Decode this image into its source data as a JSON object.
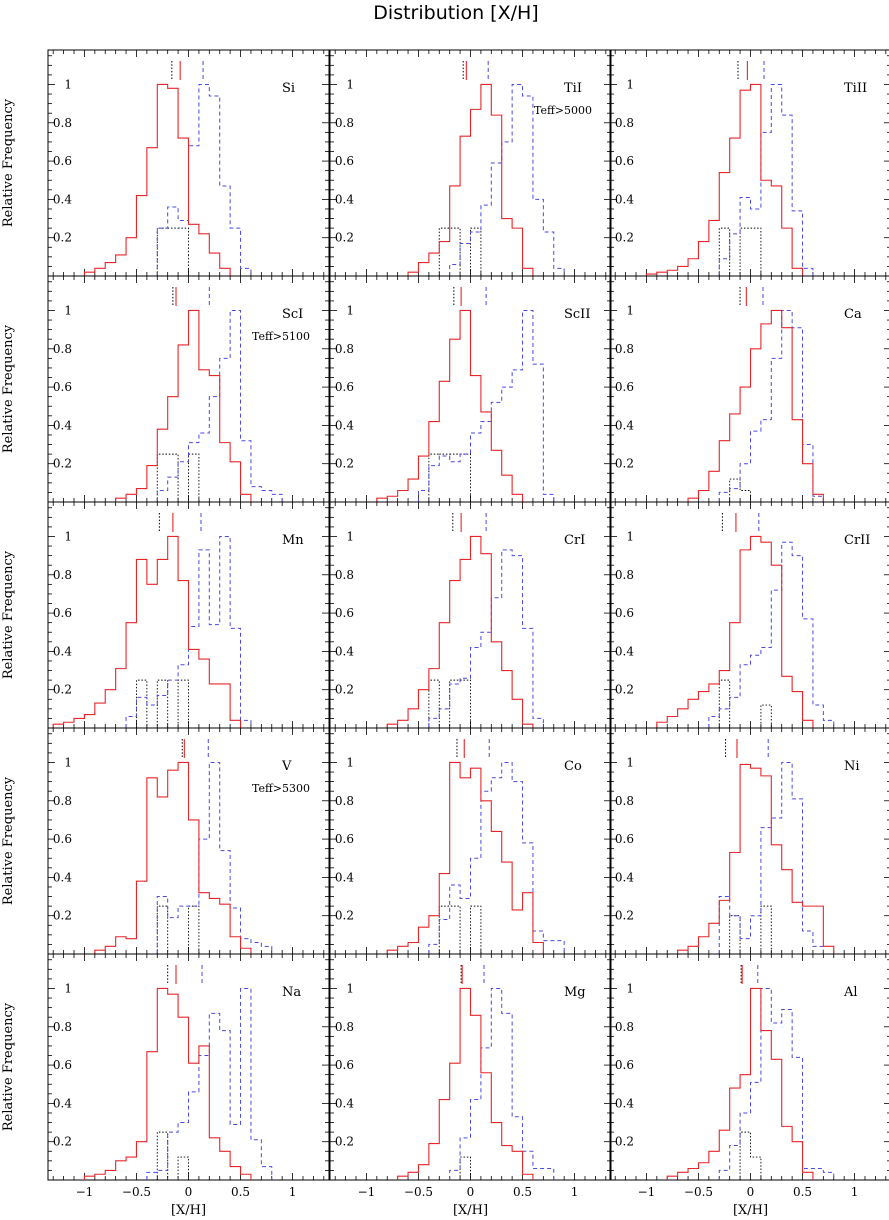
{
  "figure": {
    "title": "Distribution [X/H]",
    "xlabel": "[X/H]",
    "ylabel": "Relative Frequency",
    "xticks": [
      -1,
      -0.5,
      0,
      0.5,
      1
    ],
    "xtick_labels": [
      "−1",
      "−0.5",
      "0",
      "0.5",
      "1"
    ],
    "yticks": [
      0.2,
      0.4,
      0.6,
      0.8,
      1
    ],
    "ytick_labels": [
      "0.2",
      "0.4",
      "0.6",
      "0.8",
      "1"
    ],
    "colors": {
      "red": "#e8262a",
      "blue": "#4a4ae8",
      "black": "#000000"
    }
  },
  "chart_data": [
    {
      "element": "Si",
      "note": "",
      "type": "histogram",
      "xlim": [
        -1.35,
        1.35
      ],
      "ylim": [
        0,
        1.18
      ],
      "bin_width": 0.1,
      "red_x0": -1.0,
      "red": [
        0.02,
        0.04,
        0.07,
        0.11,
        0.2,
        0.42,
        0.67,
        1.0,
        0.98,
        0.72,
        0.27,
        0.22,
        0.12,
        0.04
      ],
      "blue_x0": -0.3,
      "blue": [
        0.25,
        0.36,
        0.29,
        0.68,
        1.0,
        0.94,
        0.47,
        0.25,
        0.04
      ],
      "black_x0": -0.3,
      "black": [
        0.25,
        0.25,
        0.25
      ],
      "marks": {
        "red": -0.08,
        "black": -0.16,
        "blue": 0.14
      }
    },
    {
      "element": "TiI",
      "note": "Teff>5000",
      "type": "histogram",
      "xlim": [
        -1.35,
        1.35
      ],
      "ylim": [
        0,
        1.18
      ],
      "bin_width": 0.1,
      "red_x0": -0.6,
      "red": [
        0.02,
        0.07,
        0.12,
        0.18,
        0.47,
        0.73,
        0.87,
        1.0,
        0.84,
        0.3,
        0.25,
        0.04
      ],
      "blue_x0": -0.2,
      "blue": [
        0.06,
        0.17,
        0.23,
        0.37,
        0.59,
        0.7,
        1.0,
        0.94,
        0.4,
        0.23,
        0.04
      ],
      "black_x0": -0.3,
      "black": [
        0.25,
        0.25,
        0.0,
        0.25
      ],
      "marks": {
        "red": -0.04,
        "black": -0.07,
        "blue": 0.17
      }
    },
    {
      "element": "TiII",
      "note": "",
      "type": "histogram",
      "xlim": [
        -1.35,
        1.35
      ],
      "ylim": [
        0,
        1.18
      ],
      "bin_width": 0.1,
      "red_x0": -1.0,
      "red": [
        0.01,
        0.02,
        0.03,
        0.05,
        0.09,
        0.18,
        0.29,
        0.54,
        0.72,
        0.97,
        1.0,
        0.5,
        0.47,
        0.25,
        0.04
      ],
      "blue_x0": -0.3,
      "blue": [
        0.09,
        0.22,
        0.41,
        0.35,
        0.75,
        1.0,
        0.84,
        0.34,
        0.04
      ],
      "black_x0": -0.3,
      "black": [
        0.25,
        0.0,
        0.25,
        0.25
      ],
      "marks": {
        "red": -0.03,
        "black": -0.12,
        "blue": 0.13
      }
    },
    {
      "element": "ScI",
      "note": "Teff>5100",
      "type": "histogram",
      "xlim": [
        -1.35,
        1.35
      ],
      "ylim": [
        0,
        1.18
      ],
      "bin_width": 0.1,
      "red_x0": -0.7,
      "red": [
        0.02,
        0.04,
        0.07,
        0.19,
        0.38,
        0.55,
        0.82,
        1.0,
        0.69,
        0.66,
        0.31,
        0.21,
        0.04
      ],
      "blue_x0": -0.3,
      "blue": [
        0.06,
        0.13,
        0.21,
        0.31,
        0.36,
        0.55,
        0.75,
        1.0,
        0.32,
        0.08,
        0.06,
        0.04
      ],
      "black_x0": -0.3,
      "black": [
        0.25,
        0.25,
        0.0,
        0.25
      ],
      "marks": {
        "red": -0.12,
        "black": -0.15,
        "blue": 0.2
      }
    },
    {
      "element": "ScII",
      "note": "",
      "type": "histogram",
      "xlim": [
        -1.35,
        1.35
      ],
      "ylim": [
        0,
        1.18
      ],
      "bin_width": 0.1,
      "red_x0": -0.9,
      "red": [
        0.02,
        0.03,
        0.06,
        0.12,
        0.24,
        0.42,
        0.63,
        0.85,
        1.0,
        0.66,
        0.47,
        0.27,
        0.14,
        0.04
      ],
      "blue_x0": -0.5,
      "blue": [
        0.06,
        0.19,
        0.24,
        0.21,
        0.25,
        0.36,
        0.42,
        0.52,
        0.6,
        0.69,
        1.0,
        0.72,
        0.04
      ],
      "black_x0": -0.4,
      "black": [
        0.25,
        0.25,
        0.25,
        0.25
      ],
      "marks": {
        "red": -0.09,
        "black": -0.16,
        "blue": 0.15
      }
    },
    {
      "element": "Ca",
      "note": "",
      "type": "histogram",
      "xlim": [
        -1.35,
        1.35
      ],
      "ylim": [
        0,
        1.18
      ],
      "bin_width": 0.1,
      "red_x0": -0.6,
      "red": [
        0.02,
        0.06,
        0.16,
        0.32,
        0.46,
        0.6,
        0.8,
        0.93,
        1.0,
        0.91,
        0.43,
        0.2,
        0.04
      ],
      "blue_x0": -0.3,
      "blue": [
        0.05,
        0.07,
        0.2,
        0.37,
        0.43,
        0.75,
        1.0,
        0.91,
        0.3,
        0.03
      ],
      "black_x0": -0.2,
      "black": [
        0.12,
        0.06
      ],
      "marks": {
        "red": -0.04,
        "black": -0.1,
        "blue": 0.12
      }
    },
    {
      "element": "Mn",
      "note": "",
      "type": "histogram",
      "xlim": [
        -1.35,
        1.35
      ],
      "ylim": [
        0,
        1.18
      ],
      "bin_width": 0.1,
      "red_x0": -1.3,
      "red": [
        0.02,
        0.03,
        0.05,
        0.07,
        0.13,
        0.2,
        0.31,
        0.55,
        0.88,
        0.75,
        0.88,
        1.0,
        0.77,
        0.41,
        0.36,
        0.23,
        0.23,
        0.04
      ],
      "blue_x0": -0.6,
      "blue": [
        0.06,
        0.16,
        0.12,
        0.17,
        0.25,
        0.33,
        0.53,
        0.93,
        0.54,
        1.0,
        0.52,
        0.04
      ],
      "black_x0": -0.5,
      "black": [
        0.25,
        0.0,
        0.25,
        0.0,
        0.25
      ],
      "marks": {
        "red": -0.15,
        "black": -0.28,
        "blue": 0.12
      }
    },
    {
      "element": "CrI",
      "note": "",
      "type": "histogram",
      "xlim": [
        -1.35,
        1.35
      ],
      "ylim": [
        0,
        1.18
      ],
      "bin_width": 0.1,
      "red_x0": -0.8,
      "red": [
        0.02,
        0.04,
        0.1,
        0.2,
        0.31,
        0.55,
        0.77,
        0.88,
        1.0,
        0.91,
        0.45,
        0.3,
        0.15,
        0.02
      ],
      "blue_x0": -0.4,
      "blue": [
        0.05,
        0.1,
        0.23,
        0.26,
        0.42,
        0.5,
        0.68,
        0.93,
        0.9,
        0.52,
        0.05
      ],
      "black_x0": -0.4,
      "black": [
        0.25,
        0.0,
        0.25,
        0.25
      ],
      "marks": {
        "red": -0.09,
        "black": -0.17,
        "blue": 0.15
      }
    },
    {
      "element": "CrII",
      "note": "",
      "type": "histogram",
      "xlim": [
        -1.35,
        1.35
      ],
      "ylim": [
        0,
        1.18
      ],
      "bin_width": 0.1,
      "red_x0": -0.9,
      "red": [
        0.03,
        0.06,
        0.1,
        0.15,
        0.19,
        0.23,
        0.3,
        0.55,
        0.93,
        1.0,
        0.97,
        0.85,
        0.27,
        0.19,
        0.04
      ],
      "blue_x0": -0.4,
      "blue": [
        0.06,
        0.1,
        0.16,
        0.33,
        0.38,
        0.42,
        0.72,
        0.97,
        0.9,
        0.57,
        0.12,
        0.04
      ],
      "black_x0": -0.3,
      "black": [
        0.25,
        0.0,
        0.0,
        0.0,
        0.12
      ],
      "marks": {
        "red": -0.14,
        "black": -0.27,
        "blue": 0.08
      }
    },
    {
      "element": "V",
      "note": "Teff>5300",
      "type": "histogram",
      "xlim": [
        -1.35,
        1.35
      ],
      "ylim": [
        0,
        1.18
      ],
      "bin_width": 0.1,
      "red_x0": -0.9,
      "red": [
        0.02,
        0.04,
        0.09,
        0.08,
        0.38,
        0.92,
        0.82,
        0.96,
        1.0,
        0.7,
        0.32,
        0.29,
        0.26,
        0.09,
        0.03
      ],
      "blue_x0": -0.3,
      "blue": [
        0.3,
        0.19,
        0.25,
        0.25,
        0.6,
        1.0,
        0.54,
        0.24,
        0.08,
        0.06,
        0.04
      ],
      "black_x0": -0.3,
      "black": [
        0.25,
        0.0,
        0.0,
        0.25
      ],
      "marks": {
        "red": -0.04,
        "black": -0.06,
        "blue": 0.19
      }
    },
    {
      "element": "Co",
      "note": "",
      "type": "histogram",
      "xlim": [
        -1.35,
        1.35
      ],
      "ylim": [
        0,
        1.18
      ],
      "bin_width": 0.1,
      "red_x0": -0.8,
      "red": [
        0.02,
        0.04,
        0.06,
        0.14,
        0.2,
        0.42,
        1.0,
        0.92,
        0.97,
        0.8,
        0.64,
        0.48,
        0.23,
        0.32,
        0.06
      ],
      "blue_x0": -0.4,
      "blue": [
        0.05,
        0.18,
        0.36,
        0.29,
        0.5,
        0.85,
        0.92,
        1.0,
        0.9,
        0.58,
        0.12,
        0.07,
        0.07
      ],
      "black_x0": -0.3,
      "black": [
        0.25,
        0.25,
        0.0,
        0.25
      ],
      "marks": {
        "red": -0.06,
        "black": -0.13,
        "blue": 0.18
      }
    },
    {
      "element": "Ni",
      "note": "",
      "type": "histogram",
      "xlim": [
        -1.35,
        1.35
      ],
      "ylim": [
        0,
        1.18
      ],
      "bin_width": 0.1,
      "red_x0": -0.7,
      "red": [
        0.02,
        0.04,
        0.09,
        0.16,
        0.28,
        0.53,
        0.99,
        0.97,
        0.93,
        0.57,
        0.44,
        0.27,
        0.25,
        0.25,
        0.04
      ],
      "blue_x0": -0.3,
      "blue": [
        0.3,
        0.2,
        0.08,
        0.2,
        0.66,
        0.71,
        1.0,
        0.81,
        0.12,
        0.04
      ],
      "black_x0": -0.2,
      "black": [
        0.2,
        0.0,
        0.0,
        0.25
      ],
      "marks": {
        "red": -0.13,
        "black": -0.24,
        "blue": 0.17
      }
    },
    {
      "element": "Na",
      "note": "",
      "type": "histogram",
      "xlim": [
        -1.35,
        1.35
      ],
      "ylim": [
        0,
        1.18
      ],
      "bin_width": 0.1,
      "red_x0": -1.0,
      "red": [
        0.02,
        0.03,
        0.05,
        0.1,
        0.12,
        0.2,
        0.67,
        1.0,
        0.97,
        0.85,
        0.61,
        0.7,
        0.22,
        0.15,
        0.07,
        0.03
      ],
      "blue_x0": -0.4,
      "blue": [
        0.04,
        0.05,
        0.25,
        0.3,
        0.46,
        0.65,
        0.87,
        0.78,
        0.29,
        1.0,
        0.21,
        0.07
      ],
      "black_x0": -0.3,
      "black": [
        0.25,
        0.0,
        0.12
      ],
      "marks": {
        "red": -0.12,
        "black": -0.2,
        "blue": 0.13
      }
    },
    {
      "element": "Mg",
      "note": "",
      "type": "histogram",
      "xlim": [
        -1.35,
        1.35
      ],
      "ylim": [
        0,
        1.18
      ],
      "bin_width": 0.1,
      "red_x0": -0.7,
      "red": [
        0.02,
        0.04,
        0.08,
        0.19,
        0.42,
        0.61,
        1.0,
        0.86,
        0.56,
        0.3,
        0.18,
        0.15,
        0.03
      ],
      "blue_x0": -0.2,
      "blue": [
        0.05,
        0.22,
        0.42,
        0.69,
        1.0,
        0.87,
        0.33,
        0.15,
        0.06,
        0.06
      ],
      "black_x0": -0.1,
      "black": [
        0.12
      ],
      "marks": {
        "red": -0.08,
        "black": -0.09,
        "blue": 0.13
      }
    },
    {
      "element": "Al",
      "note": "",
      "type": "histogram",
      "xlim": [
        -1.35,
        1.35
      ],
      "ylim": [
        0,
        1.18
      ],
      "bin_width": 0.1,
      "red_x0": -0.8,
      "red": [
        0.02,
        0.04,
        0.06,
        0.09,
        0.15,
        0.26,
        0.48,
        0.55,
        1.0,
        0.78,
        0.63,
        0.28,
        0.2,
        0.04
      ],
      "blue_x0": -0.3,
      "blue": [
        0.05,
        0.18,
        0.35,
        0.51,
        1.0,
        0.82,
        0.89,
        0.64,
        0.06,
        0.06,
        0.04
      ],
      "black_x0": -0.2,
      "black": [
        0.0,
        0.25,
        0.12
      ],
      "marks": {
        "red": -0.08,
        "black": -0.09,
        "blue": 0.07
      }
    }
  ]
}
